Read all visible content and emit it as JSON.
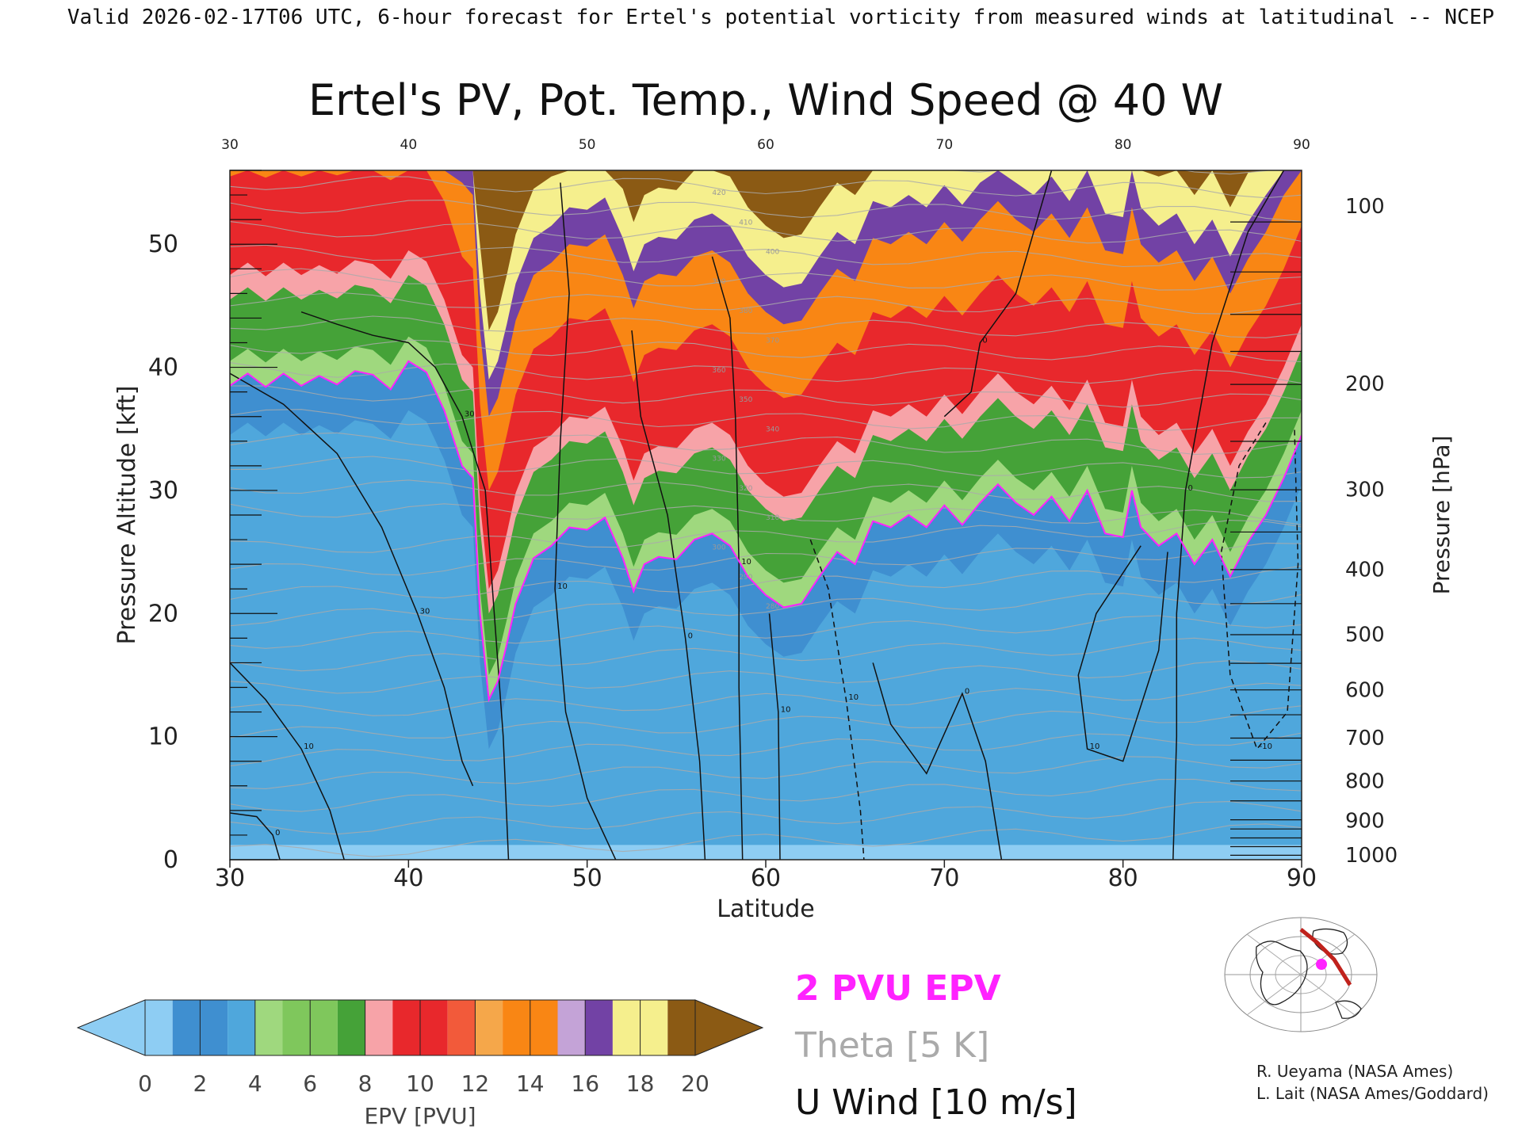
{
  "header": {
    "valid_line": "Valid 2026-02-17T06 UTC, 6-hour forecast for Ertel's potential vorticity from measured winds at latitudinal -- NCEP"
  },
  "chart_data": {
    "type": "heatmap",
    "title": "Ertel's PV, Pot. Temp., Wind Speed @ 40 W",
    "xlabel": "Latitude",
    "ylabel": "Pressure Altitude [kft]",
    "y2label": "Pressure [hPa]",
    "xlim": [
      30,
      90
    ],
    "ylim": [
      0,
      56
    ],
    "x_ticks": [
      30,
      40,
      50,
      60,
      70,
      80,
      90
    ],
    "y_ticks": [
      0,
      10,
      20,
      30,
      40,
      50
    ],
    "pressure_ticks": [
      {
        "hpa": "100",
        "kft": 53.1
      },
      {
        "hpa": "200",
        "kft": 38.7
      },
      {
        "hpa": "300",
        "kft": 30.1
      },
      {
        "hpa": "400",
        "kft": 23.6
      },
      {
        "hpa": "500",
        "kft": 18.3
      },
      {
        "hpa": "600",
        "kft": 13.8
      },
      {
        "hpa": "700",
        "kft": 9.9
      },
      {
        "hpa": "800",
        "kft": 6.4
      },
      {
        "hpa": "900",
        "kft": 3.2
      },
      {
        "hpa": "1000",
        "kft": 0.4
      }
    ],
    "colorbar": {
      "label": "EPV [PVU]",
      "ticks": [
        "0",
        "2",
        "4",
        "6",
        "8",
        "10",
        "12",
        "14",
        "16",
        "18",
        "20"
      ],
      "colors": [
        "#8ecdf3",
        "#3f8fd0",
        "#4fa7dc",
        "#9fd87e",
        "#7fc75c",
        "#45a238",
        "#f7a3a8",
        "#e8282c",
        "#f25a3a",
        "#f5a74a",
        "#f98614",
        "#c4a3d7",
        "#7242a5",
        "#f5ef8d",
        "#8b5a14"
      ],
      "under_color": "#8ecdf3",
      "over_color": "#8b5a14"
    },
    "tropopause_2pvu_kft": [
      {
        "lat": 30,
        "kft": 38.5
      },
      {
        "lat": 31,
        "kft": 39.5
      },
      {
        "lat": 32,
        "kft": 38.4
      },
      {
        "lat": 33,
        "kft": 39.5
      },
      {
        "lat": 34,
        "kft": 38.5
      },
      {
        "lat": 35,
        "kft": 39.3
      },
      {
        "lat": 36,
        "kft": 38.6
      },
      {
        "lat": 37,
        "kft": 39.7
      },
      {
        "lat": 38,
        "kft": 39.4
      },
      {
        "lat": 39,
        "kft": 38.2
      },
      {
        "lat": 40,
        "kft": 40.5
      },
      {
        "lat": 41,
        "kft": 39.6
      },
      {
        "lat": 42,
        "kft": 36.5
      },
      {
        "lat": 43,
        "kft": 32.0
      },
      {
        "lat": 43.6,
        "kft": 31.0
      },
      {
        "lat": 44,
        "kft": 20.0
      },
      {
        "lat": 44.5,
        "kft": 13.0
      },
      {
        "lat": 45,
        "kft": 14.5
      },
      {
        "lat": 45.5,
        "kft": 17.5
      },
      {
        "lat": 46,
        "kft": 20.8
      },
      {
        "lat": 47,
        "kft": 24.5
      },
      {
        "lat": 48,
        "kft": 25.5
      },
      {
        "lat": 49,
        "kft": 27.0
      },
      {
        "lat": 50,
        "kft": 26.8
      },
      {
        "lat": 51,
        "kft": 27.8
      },
      {
        "lat": 52,
        "kft": 24.5
      },
      {
        "lat": 52.6,
        "kft": 21.8
      },
      {
        "lat": 53.2,
        "kft": 24.0
      },
      {
        "lat": 54,
        "kft": 24.6
      },
      {
        "lat": 55,
        "kft": 24.4
      },
      {
        "lat": 56,
        "kft": 26.0
      },
      {
        "lat": 57,
        "kft": 26.5
      },
      {
        "lat": 58,
        "kft": 25.5
      },
      {
        "lat": 59,
        "kft": 23.0
      },
      {
        "lat": 60,
        "kft": 21.5
      },
      {
        "lat": 61,
        "kft": 20.5
      },
      {
        "lat": 62,
        "kft": 20.8
      },
      {
        "lat": 63,
        "kft": 23.0
      },
      {
        "lat": 64,
        "kft": 25.0
      },
      {
        "lat": 65,
        "kft": 24.0
      },
      {
        "lat": 66,
        "kft": 27.5
      },
      {
        "lat": 67,
        "kft": 27.0
      },
      {
        "lat": 68,
        "kft": 28.0
      },
      {
        "lat": 69,
        "kft": 27.0
      },
      {
        "lat": 70,
        "kft": 28.8
      },
      {
        "lat": 71,
        "kft": 27.2
      },
      {
        "lat": 72,
        "kft": 29.0
      },
      {
        "lat": 73,
        "kft": 30.5
      },
      {
        "lat": 74,
        "kft": 29.0
      },
      {
        "lat": 75,
        "kft": 28.0
      },
      {
        "lat": 76,
        "kft": 29.5
      },
      {
        "lat": 77,
        "kft": 27.5
      },
      {
        "lat": 78,
        "kft": 30.0
      },
      {
        "lat": 79,
        "kft": 26.5
      },
      {
        "lat": 80,
        "kft": 26.2
      },
      {
        "lat": 80.5,
        "kft": 30.0
      },
      {
        "lat": 81,
        "kft": 27.0
      },
      {
        "lat": 82,
        "kft": 25.5
      },
      {
        "lat": 83,
        "kft": 26.5
      },
      {
        "lat": 84,
        "kft": 24.0
      },
      {
        "lat": 85,
        "kft": 26.0
      },
      {
        "lat": 86,
        "kft": 23.0
      },
      {
        "lat": 87,
        "kft": 25.8
      },
      {
        "lat": 88,
        "kft": 28.0
      },
      {
        "lat": 89,
        "kft": 31.0
      },
      {
        "lat": 90,
        "kft": 34.5
      }
    ],
    "layer_offsets_kft": {
      "green_top": 7,
      "red_top": 17,
      "orange_top": 23,
      "purple_top": 26
    },
    "wind_contours": [
      {
        "label": "30",
        "style": "solid",
        "points": [
          [
            30,
            39.5
          ],
          [
            33,
            37
          ],
          [
            36,
            33
          ],
          [
            38.5,
            27
          ],
          [
            40.5,
            20
          ],
          [
            42,
            14
          ],
          [
            43,
            8
          ],
          [
            43.6,
            6
          ]
        ]
      },
      {
        "label": "30",
        "style": "solid",
        "points": [
          [
            34,
            44.5
          ],
          [
            36,
            43.5
          ],
          [
            38,
            42.6
          ],
          [
            40,
            42
          ],
          [
            41.5,
            40
          ],
          [
            43,
            36
          ],
          [
            44.3,
            30
          ],
          [
            44.8,
            20
          ],
          [
            45.3,
            10
          ],
          [
            45.6,
            0
          ]
        ]
      },
      {
        "label": "10",
        "style": "solid",
        "points": [
          [
            30,
            16
          ],
          [
            32,
            13
          ],
          [
            34,
            9
          ],
          [
            35.6,
            4
          ],
          [
            36.4,
            0
          ]
        ]
      },
      {
        "label": "0",
        "style": "solid",
        "points": [
          [
            30,
            3.8
          ],
          [
            31.5,
            3.5
          ],
          [
            32.4,
            2
          ],
          [
            32.8,
            0
          ]
        ]
      },
      {
        "label": "10",
        "style": "solid",
        "points": [
          [
            48.5,
            55
          ],
          [
            49,
            46
          ],
          [
            48.5,
            34
          ],
          [
            48.2,
            22
          ],
          [
            48.8,
            12
          ],
          [
            50,
            5
          ],
          [
            51.6,
            0
          ]
        ]
      },
      {
        "label": "0",
        "style": "solid",
        "points": [
          [
            52.5,
            43
          ],
          [
            53,
            36
          ],
          [
            54.5,
            28
          ],
          [
            55.5,
            18
          ],
          [
            56.3,
            8
          ],
          [
            56.6,
            0
          ]
        ]
      },
      {
        "label": "10",
        "style": "solid",
        "points": [
          [
            57,
            49
          ],
          [
            58,
            44
          ],
          [
            58.3,
            36
          ],
          [
            58.5,
            24
          ],
          [
            58.5,
            14
          ],
          [
            58.7,
            0
          ]
        ]
      },
      {
        "label": "10",
        "style": "solid",
        "points": [
          [
            60.2,
            20
          ],
          [
            60.7,
            12
          ],
          [
            60.8,
            0
          ]
        ]
      },
      {
        "label": "0",
        "style": "solid",
        "points": [
          [
            66,
            16
          ],
          [
            67,
            11
          ],
          [
            69,
            7
          ],
          [
            71,
            13.5
          ],
          [
            72.3,
            8
          ],
          [
            73.2,
            0
          ]
        ]
      },
      {
        "label": "10",
        "style": "dashed",
        "points": [
          [
            62.5,
            26
          ],
          [
            63.5,
            22
          ],
          [
            64.5,
            13
          ],
          [
            65.3,
            4
          ],
          [
            65.5,
            0
          ]
        ]
      },
      {
        "label": "10",
        "style": "solid",
        "points": [
          [
            81,
            25.5
          ],
          [
            78.5,
            20
          ],
          [
            77.5,
            15
          ],
          [
            78,
            9
          ],
          [
            80,
            8
          ],
          [
            82,
            17
          ],
          [
            82.5,
            25
          ]
        ]
      },
      {
        "label": "0",
        "style": "solid",
        "points": [
          [
            76,
            56
          ],
          [
            74,
            46
          ],
          [
            72,
            42
          ],
          [
            71.5,
            38
          ],
          [
            70,
            36
          ]
        ]
      },
      {
        "label": "0",
        "style": "solid",
        "points": [
          [
            89,
            56
          ],
          [
            87,
            51
          ],
          [
            85,
            42
          ],
          [
            83.5,
            30
          ],
          [
            83,
            20
          ],
          [
            83,
            10
          ],
          [
            82.8,
            0
          ]
        ]
      },
      {
        "label": "-10",
        "style": "dashed",
        "points": [
          [
            88,
            35.5
          ],
          [
            86.5,
            32
          ],
          [
            85.5,
            25
          ],
          [
            86,
            15
          ],
          [
            87.5,
            9
          ],
          [
            89.2,
            12
          ],
          [
            89.8,
            24
          ],
          [
            89.6,
            35
          ]
        ]
      }
    ],
    "theta_labels": [
      "420",
      "410",
      "400",
      "390",
      "380",
      "370",
      "360",
      "350",
      "340",
      "330",
      "320",
      "310",
      "300",
      "290",
      "280"
    ],
    "pressure_bracket_levels_hpa": [
      100,
      125,
      150,
      175,
      200,
      250,
      300,
      350,
      400,
      450,
      500,
      550,
      600,
      650,
      700,
      750,
      800,
      850,
      900,
      925,
      950,
      975,
      1000
    ]
  },
  "legend": {
    "epv_line": "2 PVU EPV",
    "theta_line": "Theta [5 K]",
    "wind_line": "U Wind [10 m/s]",
    "epv_color": "#ff22ff",
    "theta_color": "#aaaaaa",
    "wind_color": "#111111"
  },
  "credits": {
    "line1": "R. Ueyama (NASA Ames)",
    "line2": "L. Lait (NASA Ames/Goddard)"
  },
  "map_inset": {
    "track_color": "#c0221c",
    "marker_color": "#ff22ff"
  }
}
